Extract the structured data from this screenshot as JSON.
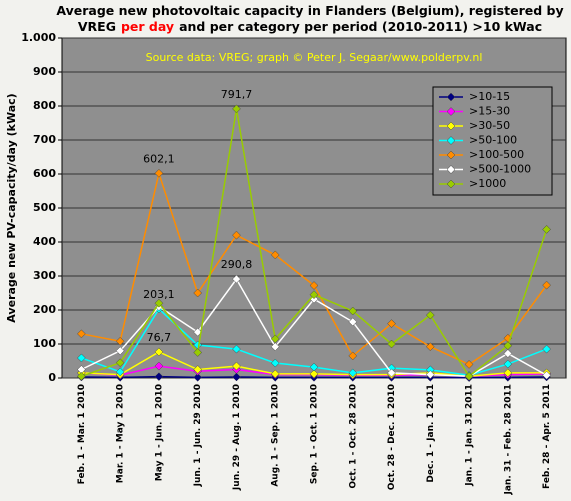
{
  "chart_data": {
    "type": "line",
    "title_lines": [
      [
        "Average new photovoltaic capacity in Flanders (Belgium), registered by"
      ],
      [
        "VREG",
        "per day",
        "and per category per period (2010-2011) >10 kWac"
      ]
    ],
    "source": "Source data: VREG; graph © Peter J. Segaar/www.polderpv.nl",
    "y_label": "Average new PV-capacity/day (kWac)",
    "categories": [
      "Feb. 1 - Mar. 1 2010",
      "Mar. 1 - May 1 2010",
      "May 1 - Jun. 1 2010",
      "Jun. 1 - Jun. 29 2010",
      "Jun. 29 - Aug. 1 2010",
      "Aug. 1 - Sep. 1 2010",
      "Sep. 1 - Oct. 1 2010",
      "Oct. 1 - Oct. 28 2010",
      "Oct. 28 - Dec. 1 2010",
      "Dec. 1 - Jan. 1 2011",
      "Jan. 1 - Jan. 31 2011",
      "Jan. 31 - Feb. 28 2011",
      "Feb. 28 - Apr. 5 2011"
    ],
    "series": [
      {
        "name": ">10-15",
        "color": "#000080",
        "values": [
          3,
          2,
          4,
          2,
          3,
          2,
          2,
          2,
          2,
          2,
          1,
          2,
          3
        ]
      },
      {
        "name": ">15-30",
        "color": "#ff00ff",
        "values": [
          15,
          8,
          35,
          20,
          25,
          10,
          10,
          8,
          8,
          10,
          5,
          10,
          12
        ]
      },
      {
        "name": ">30-50",
        "color": "#ffff00",
        "values": [
          15,
          10,
          76.7,
          25,
          35,
          12,
          12,
          10,
          10,
          15,
          5,
          15,
          15
        ],
        "value_labels": [
          null,
          null,
          "76,7",
          null,
          null,
          null,
          null,
          null,
          null,
          null,
          null,
          null,
          null
        ]
      },
      {
        "name": ">50-100",
        "color": "#00ffff",
        "values": [
          59,
          18,
          203.1,
          97,
          85,
          44,
          32,
          15,
          29,
          24,
          8,
          41,
          85
        ],
        "value_labels": [
          null,
          null,
          "203,1",
          null,
          null,
          null,
          null,
          null,
          null,
          null,
          null,
          null,
          null
        ]
      },
      {
        "name": ">100-500",
        "color": "#ff8c00",
        "values": [
          130,
          108,
          602.1,
          250,
          420,
          362,
          272,
          65,
          160,
          92,
          40,
          117,
          273
        ],
        "value_labels": [
          null,
          null,
          "602,1",
          null,
          null,
          null,
          null,
          null,
          null,
          null,
          null,
          null,
          null
        ]
      },
      {
        "name": ">500-1000",
        "color": "#ffffff",
        "values": [
          25,
          80,
          210,
          135,
          290.8,
          92,
          232,
          165,
          15,
          10,
          5,
          72,
          8
        ],
        "value_labels": [
          null,
          null,
          null,
          null,
          "290,8",
          null,
          null,
          null,
          null,
          null,
          null,
          null,
          null
        ]
      },
      {
        "name": ">1000",
        "color": "#99cc00",
        "values": [
          5,
          45,
          220,
          75,
          791.7,
          115,
          245,
          197,
          100,
          185,
          5,
          95,
          437
        ],
        "value_labels": [
          null,
          null,
          null,
          null,
          "791,7",
          null,
          null,
          null,
          null,
          null,
          null,
          null,
          null
        ]
      }
    ],
    "ylim": [
      0,
      1000
    ],
    "yticks": [
      0,
      100,
      200,
      300,
      400,
      500,
      600,
      700,
      800,
      900,
      {
        "value": 1000,
        "label": "1.000"
      }
    ],
    "grid": true,
    "legend": "upper right"
  }
}
